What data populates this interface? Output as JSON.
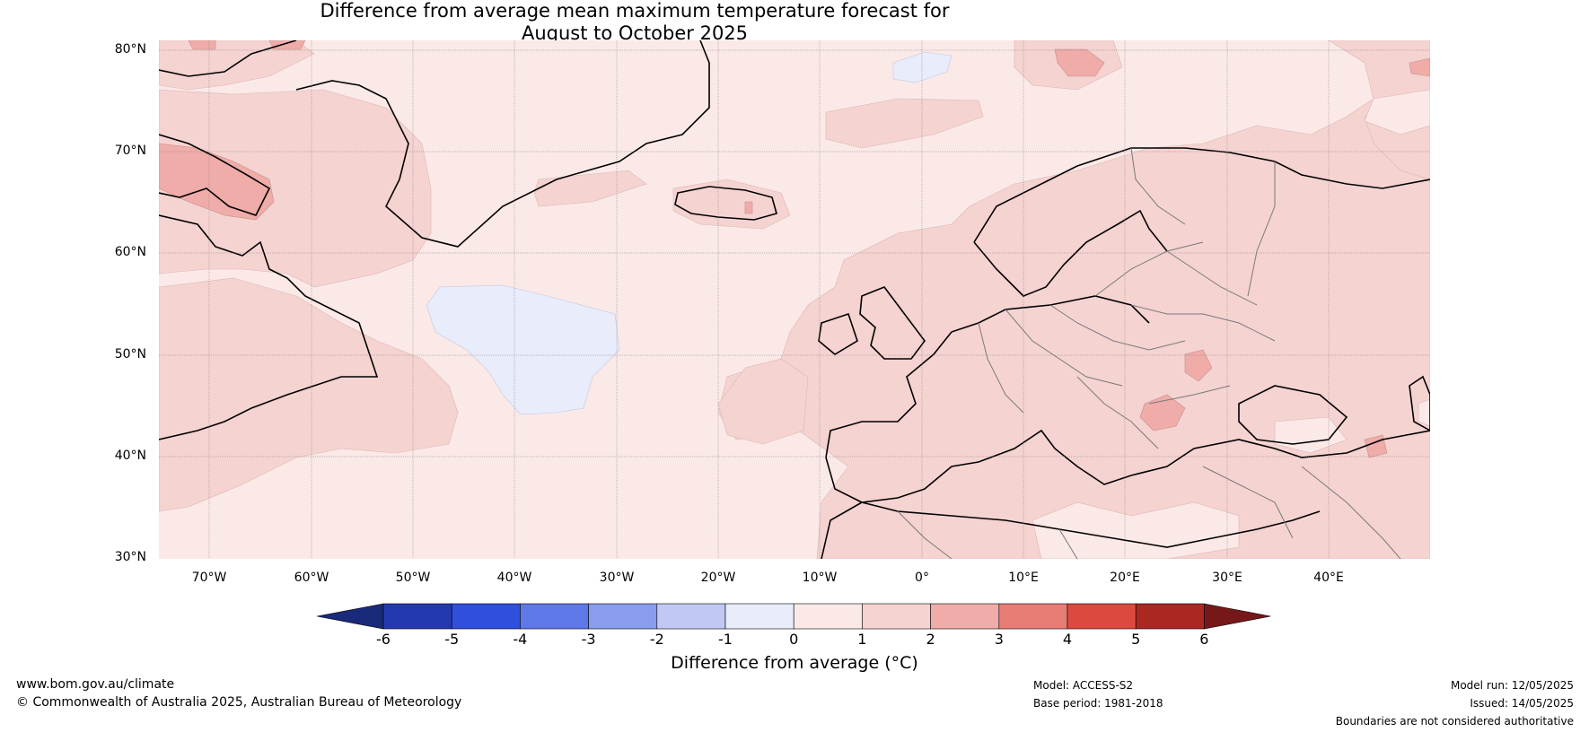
{
  "title": {
    "line1": "Difference from average mean maximum temperature forecast for",
    "line2": "August to October 2025"
  },
  "axes": {
    "lat_labels": [
      "80°N",
      "70°N",
      "60°N",
      "50°N",
      "40°N",
      "30°N"
    ],
    "lon_labels": [
      "70°W",
      "60°W",
      "50°W",
      "40°W",
      "30°W",
      "20°W",
      "10°W",
      "0°",
      "10°E",
      "20°E",
      "30°E",
      "40°E"
    ],
    "lat_range": [
      30,
      80
    ],
    "lon_range": [
      -75,
      50
    ]
  },
  "colorbar": {
    "ticks": [
      "-6",
      "-5",
      "-4",
      "-3",
      "-2",
      "-1",
      "0",
      "1",
      "2",
      "3",
      "4",
      "5",
      "6"
    ],
    "colors": [
      "#1a2a7a",
      "#2439b0",
      "#2f4fdd",
      "#5f78e8",
      "#8a9ced",
      "#c1c8f3",
      "#e8ecfb",
      "#fbe9e7",
      "#f5d3d1",
      "#efaca8",
      "#e67c74",
      "#dc4a3f",
      "#ab2822",
      "#76181a"
    ],
    "label": "Difference from average (°C)"
  },
  "footer": {
    "website": "www.bom.gov.au/climate",
    "copyright": "© Commonwealth of Australia 2025, Australian Bureau of Meteorology",
    "model": "Model: ACCESS-S2",
    "base_period": "Base period: 1981-2018",
    "model_run": "Model run: 12/05/2025",
    "issued": "Issued: 14/05/2025",
    "disclaimer": "Boundaries are not considered authoritative"
  }
}
